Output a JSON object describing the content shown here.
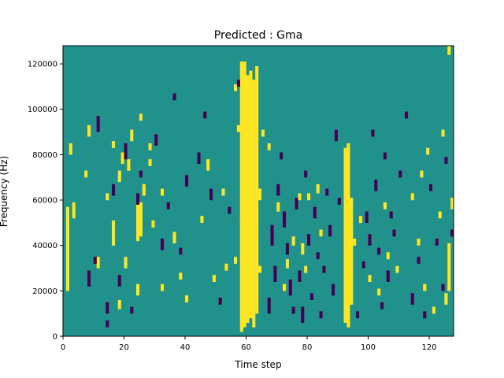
{
  "chart_data": {
    "type": "heatmap",
    "title": "Predicted : Gma",
    "xlabel": "Time step",
    "ylabel": "Frequency (Hz)",
    "xlim": [
      0,
      128
    ],
    "ylim": [
      0,
      128000
    ],
    "x_ticks": [
      0,
      20,
      40,
      60,
      80,
      100,
      120
    ],
    "x_tick_labels": [
      "0",
      "20",
      "40",
      "60",
      "80",
      "100",
      "120"
    ],
    "y_ticks": [
      0,
      20000,
      40000,
      60000,
      80000,
      100000,
      120000
    ],
    "y_tick_labels": [
      "0",
      "20000",
      "40000",
      "60000",
      "80000",
      "100000",
      "120000"
    ],
    "n_time_steps": 128,
    "n_freq_bins": 128,
    "value_levels": [
      -1,
      0,
      1
    ],
    "colormap": "viridis",
    "colors": {
      "low": "#440154",
      "mid": "#21918c",
      "high": "#fde725"
    },
    "background_level": 0,
    "high_segments": [
      [
        1,
        20,
        56
      ],
      [
        1,
        50,
        50
      ],
      [
        2,
        80,
        84
      ],
      [
        3,
        52,
        58
      ],
      [
        7,
        70,
        72
      ],
      [
        8,
        88,
        92
      ],
      [
        11,
        30,
        34
      ],
      [
        14,
        60,
        62
      ],
      [
        16,
        40,
        50
      ],
      [
        16,
        83,
        85
      ],
      [
        18,
        68,
        72
      ],
      [
        18,
        12,
        15
      ],
      [
        19,
        76,
        80
      ],
      [
        20,
        30,
        34
      ],
      [
        21,
        73,
        77
      ],
      [
        22,
        86,
        90
      ],
      [
        24,
        18,
        22
      ],
      [
        24,
        42,
        58
      ],
      [
        25,
        44,
        58
      ],
      [
        25,
        95,
        97
      ],
      [
        26,
        62,
        66
      ],
      [
        28,
        75,
        77
      ],
      [
        28,
        82,
        84
      ],
      [
        29,
        48,
        50
      ],
      [
        32,
        62,
        64
      ],
      [
        32,
        20,
        22
      ],
      [
        36,
        41,
        45
      ],
      [
        38,
        25,
        27
      ],
      [
        40,
        15,
        17
      ],
      [
        45,
        50,
        52
      ],
      [
        47,
        73,
        77
      ],
      [
        49,
        24,
        26
      ],
      [
        52,
        62,
        64
      ],
      [
        53,
        29,
        31
      ],
      [
        56,
        32,
        34
      ],
      [
        58,
        50,
        52
      ],
      [
        58,
        2,
        3
      ],
      [
        57,
        90,
        92
      ],
      [
        56,
        108,
        110
      ],
      [
        58,
        4,
        120
      ],
      [
        59,
        4,
        120
      ],
      [
        60,
        6,
        114
      ],
      [
        61,
        8,
        116
      ],
      [
        62,
        4,
        112
      ],
      [
        63,
        10,
        118
      ],
      [
        64,
        28,
        30
      ],
      [
        64,
        60,
        64
      ],
      [
        65,
        88,
        90
      ],
      [
        67,
        82,
        84
      ],
      [
        70,
        55,
        58
      ],
      [
        72,
        20,
        22
      ],
      [
        73,
        30,
        33
      ],
      [
        75,
        40,
        43
      ],
      [
        77,
        60,
        62
      ],
      [
        78,
        36,
        40
      ],
      [
        79,
        28,
        30
      ],
      [
        80,
        60,
        62
      ],
      [
        83,
        63,
        66
      ],
      [
        84,
        44,
        46
      ],
      [
        92,
        6,
        82
      ],
      [
        93,
        4,
        84
      ],
      [
        94,
        14,
        60
      ],
      [
        95,
        40,
        42
      ],
      [
        97,
        50,
        52
      ],
      [
        100,
        24,
        26
      ],
      [
        103,
        18,
        20
      ],
      [
        105,
        56,
        58
      ],
      [
        106,
        34,
        36
      ],
      [
        109,
        28,
        30
      ],
      [
        114,
        60,
        62
      ],
      [
        116,
        40,
        42
      ],
      [
        117,
        70,
        72
      ],
      [
        118,
        20,
        22
      ],
      [
        119,
        80,
        82
      ],
      [
        121,
        10,
        12
      ],
      [
        123,
        52,
        54
      ],
      [
        124,
        88,
        90
      ],
      [
        125,
        14,
        18
      ],
      [
        126,
        20,
        40
      ],
      [
        126,
        124,
        127
      ],
      [
        127,
        56,
        60
      ]
    ],
    "low_segments": [
      [
        8,
        22,
        28
      ],
      [
        10,
        32,
        34
      ],
      [
        11,
        90,
        96
      ],
      [
        14,
        4,
        6
      ],
      [
        14,
        10,
        14
      ],
      [
        16,
        62,
        66
      ],
      [
        18,
        22,
        26
      ],
      [
        20,
        78,
        84
      ],
      [
        22,
        10,
        12
      ],
      [
        24,
        58,
        62
      ],
      [
        25,
        70,
        72
      ],
      [
        30,
        84,
        88
      ],
      [
        32,
        38,
        42
      ],
      [
        34,
        56,
        58
      ],
      [
        36,
        104,
        106
      ],
      [
        38,
        36,
        38
      ],
      [
        40,
        66,
        70
      ],
      [
        44,
        76,
        80
      ],
      [
        46,
        96,
        98
      ],
      [
        48,
        60,
        64
      ],
      [
        51,
        14,
        16
      ],
      [
        54,
        54,
        56
      ],
      [
        57,
        110,
        112
      ],
      [
        67,
        10,
        16
      ],
      [
        68,
        40,
        48
      ],
      [
        69,
        24,
        30
      ],
      [
        70,
        62,
        66
      ],
      [
        71,
        78,
        80
      ],
      [
        72,
        48,
        54
      ],
      [
        73,
        36,
        40
      ],
      [
        74,
        18,
        24
      ],
      [
        75,
        10,
        12
      ],
      [
        76,
        56,
        60
      ],
      [
        77,
        24,
        28
      ],
      [
        78,
        6,
        12
      ],
      [
        79,
        70,
        72
      ],
      [
        80,
        40,
        44
      ],
      [
        81,
        16,
        18
      ],
      [
        82,
        52,
        56
      ],
      [
        83,
        34,
        36
      ],
      [
        84,
        8,
        10
      ],
      [
        85,
        28,
        30
      ],
      [
        86,
        62,
        64
      ],
      [
        87,
        44,
        48
      ],
      [
        88,
        18,
        22
      ],
      [
        89,
        86,
        90
      ],
      [
        90,
        58,
        60
      ],
      [
        96,
        8,
        10
      ],
      [
        98,
        30,
        32
      ],
      [
        99,
        50,
        54
      ],
      [
        100,
        40,
        44
      ],
      [
        101,
        88,
        90
      ],
      [
        102,
        64,
        68
      ],
      [
        103,
        36,
        38
      ],
      [
        104,
        12,
        14
      ],
      [
        105,
        78,
        80
      ],
      [
        106,
        24,
        28
      ],
      [
        107,
        52,
        54
      ],
      [
        108,
        44,
        46
      ],
      [
        110,
        70,
        72
      ],
      [
        112,
        96,
        98
      ],
      [
        114,
        14,
        18
      ],
      [
        116,
        32,
        34
      ],
      [
        118,
        8,
        10
      ],
      [
        120,
        64,
        66
      ],
      [
        122,
        40,
        42
      ],
      [
        124,
        20,
        22
      ],
      [
        125,
        76,
        78
      ],
      [
        127,
        44,
        46
      ]
    ]
  }
}
